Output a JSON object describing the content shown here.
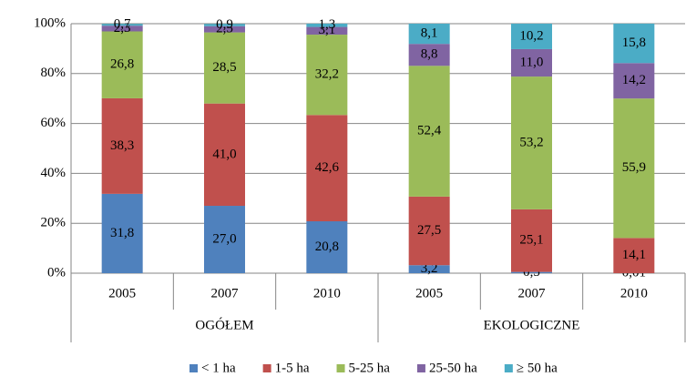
{
  "chart_data": {
    "type": "stacked-bar",
    "categories": [
      "2005",
      "2007",
      "2010",
      "2005",
      "2007",
      "2010"
    ],
    "groups": [
      "OGÓŁEM",
      "EKOLOGICZNE"
    ],
    "ylim": [
      0,
      100
    ],
    "yticks": [
      {
        "value": 0,
        "label": "0%"
      },
      {
        "value": 20,
        "label": "20%"
      },
      {
        "value": 40,
        "label": "40%"
      },
      {
        "value": 60,
        "label": "60%"
      },
      {
        "value": 80,
        "label": "80%"
      },
      {
        "value": 100,
        "label": "100%"
      }
    ],
    "grid": true,
    "series": [
      {
        "name": "< 1 ha",
        "color": "#4f81bd",
        "values": [
          31.8,
          27.0,
          20.8,
          3.2,
          0.5,
          0.01
        ],
        "value_labels": [
          "31,8",
          "27,0",
          "20,8",
          "3,2",
          "0,5",
          "0,01"
        ]
      },
      {
        "name": "1-5 ha",
        "color": "#c0504d",
        "values": [
          38.3,
          41.0,
          42.6,
          27.5,
          25.1,
          14.1
        ],
        "value_labels": [
          "38,3",
          "41,0",
          "42,6",
          "27,5",
          "25,1",
          "14,1"
        ]
      },
      {
        "name": "5-25 ha",
        "color": "#9bbb59",
        "values": [
          26.8,
          28.5,
          32.2,
          52.4,
          53.2,
          55.9
        ],
        "value_labels": [
          "26,8",
          "28,5",
          "32,2",
          "52,4",
          "53,2",
          "55,9"
        ]
      },
      {
        "name": "25-50 ha",
        "color": "#8064a2",
        "values": [
          2.3,
          2.5,
          3.1,
          8.8,
          11.0,
          14.2
        ],
        "value_labels": [
          "2,3",
          "2,5",
          "3,1",
          "8,8",
          "11,0",
          "14,2"
        ]
      },
      {
        "name": "≥ 50 ha",
        "color": "#4bacc6",
        "values": [
          0.7,
          0.9,
          1.3,
          8.1,
          10.2,
          15.8
        ],
        "value_labels": [
          "0,7",
          "0,9",
          "1,3",
          "8,1",
          "10,2",
          "15,8"
        ]
      }
    ]
  }
}
